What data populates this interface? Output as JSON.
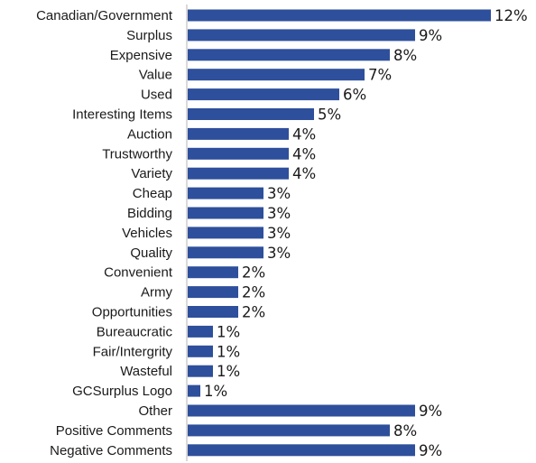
{
  "chart_data": {
    "type": "bar",
    "orientation": "horizontal",
    "categories": [
      "Canadian/Government",
      "Surplus",
      "Expensive",
      "Value",
      "Used",
      "Interesting Items",
      "Auction",
      "Trustworthy",
      "Variety",
      "Cheap",
      "Bidding",
      "Vehicles",
      "Quality",
      "Convenient",
      "Army",
      "Opportunities",
      "Bureaucratic",
      "Fair/Intergrity",
      "Wasteful",
      "GCSurplus Logo",
      "Other",
      "Positive Comments",
      "Negative Comments"
    ],
    "values": [
      12,
      9,
      8,
      7,
      6,
      5,
      4,
      4,
      4,
      3,
      3,
      3,
      3,
      2,
      2,
      2,
      1,
      1,
      1,
      0.5,
      9,
      8,
      9
    ],
    "value_labels": [
      "12%",
      "9%",
      "8%",
      "7%",
      "6%",
      "5%",
      "4%",
      "4%",
      "4%",
      "3%",
      "3%",
      "3%",
      "3%",
      "2%",
      "2%",
      "2%",
      "1%",
      "1%",
      "1%",
      "1%",
      "9%",
      "8%",
      "9%"
    ],
    "xlim": [
      0,
      12.5
    ],
    "grid": false,
    "bar_color": "#2E4F9B",
    "axis_color": "#b3b3b3"
  }
}
